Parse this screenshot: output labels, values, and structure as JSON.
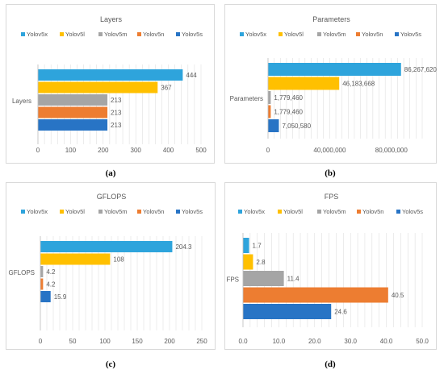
{
  "colors": {
    "Yolov5x": "#2ea4dc",
    "Yolov5l": "#ffc000",
    "Yolov5m": "#a5a5a5",
    "Yolov5n": "#ed7d31",
    "Yolov5s": "#2874c5",
    "grid": "#d9d9d9",
    "text": "#595959"
  },
  "captions": [
    "(a)",
    "(b)",
    "(c)",
    "(d)"
  ],
  "chart_data": [
    {
      "type": "bar",
      "orientation": "horizontal",
      "title": "Layers",
      "category": "Layers",
      "series": [
        {
          "name": "Yolov5x",
          "value": 444,
          "label": "444"
        },
        {
          "name": "Yolov5l",
          "value": 367,
          "label": "367"
        },
        {
          "name": "Yolov5m",
          "value": 213,
          "label": "213"
        },
        {
          "name": "Yolov5n",
          "value": 213,
          "label": "213"
        },
        {
          "name": "Yolov5s",
          "value": 213,
          "label": "213"
        }
      ],
      "xlim": [
        0,
        500
      ],
      "ticks": [
        0,
        100,
        200,
        300,
        400,
        500
      ],
      "tick_labels": [
        "0",
        "100",
        "200",
        "300",
        "400",
        "500"
      ],
      "minor_step": 20,
      "legend": "top"
    },
    {
      "type": "bar",
      "orientation": "horizontal",
      "title": "Parameters",
      "category": "Parameters",
      "series": [
        {
          "name": "Yolov5x",
          "value": 86267620,
          "label": "86,267,620"
        },
        {
          "name": "Yolov5l",
          "value": 46183668,
          "label": "46,183,668"
        },
        {
          "name": "Yolov5m",
          "value": 1779460,
          "label": "1,779,460"
        },
        {
          "name": "Yolov5n",
          "value": 1779460,
          "label": "1,779,460"
        },
        {
          "name": "Yolov5s",
          "value": 7050580,
          "label": "7,050,580"
        }
      ],
      "xlim": [
        0,
        100000000
      ],
      "ticks": [
        0,
        40000000,
        80000000
      ],
      "tick_labels": [
        "0",
        "40,000,000",
        "80,000,000"
      ],
      "minor_step": 4000000,
      "legend": "top"
    },
    {
      "type": "bar",
      "orientation": "horizontal",
      "title": "GFLOPS",
      "category": "GFLOPS",
      "series": [
        {
          "name": "Yolov5x",
          "value": 204.3,
          "label": "204.3"
        },
        {
          "name": "Yolov5l",
          "value": 108,
          "label": "108"
        },
        {
          "name": "Yolov5m",
          "value": 4.2,
          "label": "4.2"
        },
        {
          "name": "Yolov5n",
          "value": 4.2,
          "label": "4.2"
        },
        {
          "name": "Yolov5s",
          "value": 15.9,
          "label": "15.9"
        }
      ],
      "xlim": [
        0,
        250
      ],
      "ticks": [
        0,
        50,
        100,
        150,
        200,
        250
      ],
      "tick_labels": [
        "0",
        "50",
        "100",
        "150",
        "200",
        "250"
      ],
      "minor_step": 10,
      "legend": "top"
    },
    {
      "type": "bar",
      "orientation": "horizontal",
      "title": "FPS",
      "category": "FPS",
      "series": [
        {
          "name": "Yolov5x",
          "value": 1.7,
          "label": "1.7"
        },
        {
          "name": "Yolov5l",
          "value": 2.8,
          "label": "2.8"
        },
        {
          "name": "Yolov5m",
          "value": 11.4,
          "label": "11.4"
        },
        {
          "name": "Yolov5n",
          "value": 40.5,
          "label": "40.5"
        },
        {
          "name": "Yolov5s",
          "value": 24.6,
          "label": "24.6"
        }
      ],
      "xlim": [
        0,
        50
      ],
      "ticks": [
        0,
        10,
        20,
        30,
        40,
        50
      ],
      "tick_labels": [
        "0.0",
        "10.0",
        "20.0",
        "30.0",
        "40.0",
        "50.0"
      ],
      "minor_step": 2,
      "legend": "top"
    }
  ]
}
